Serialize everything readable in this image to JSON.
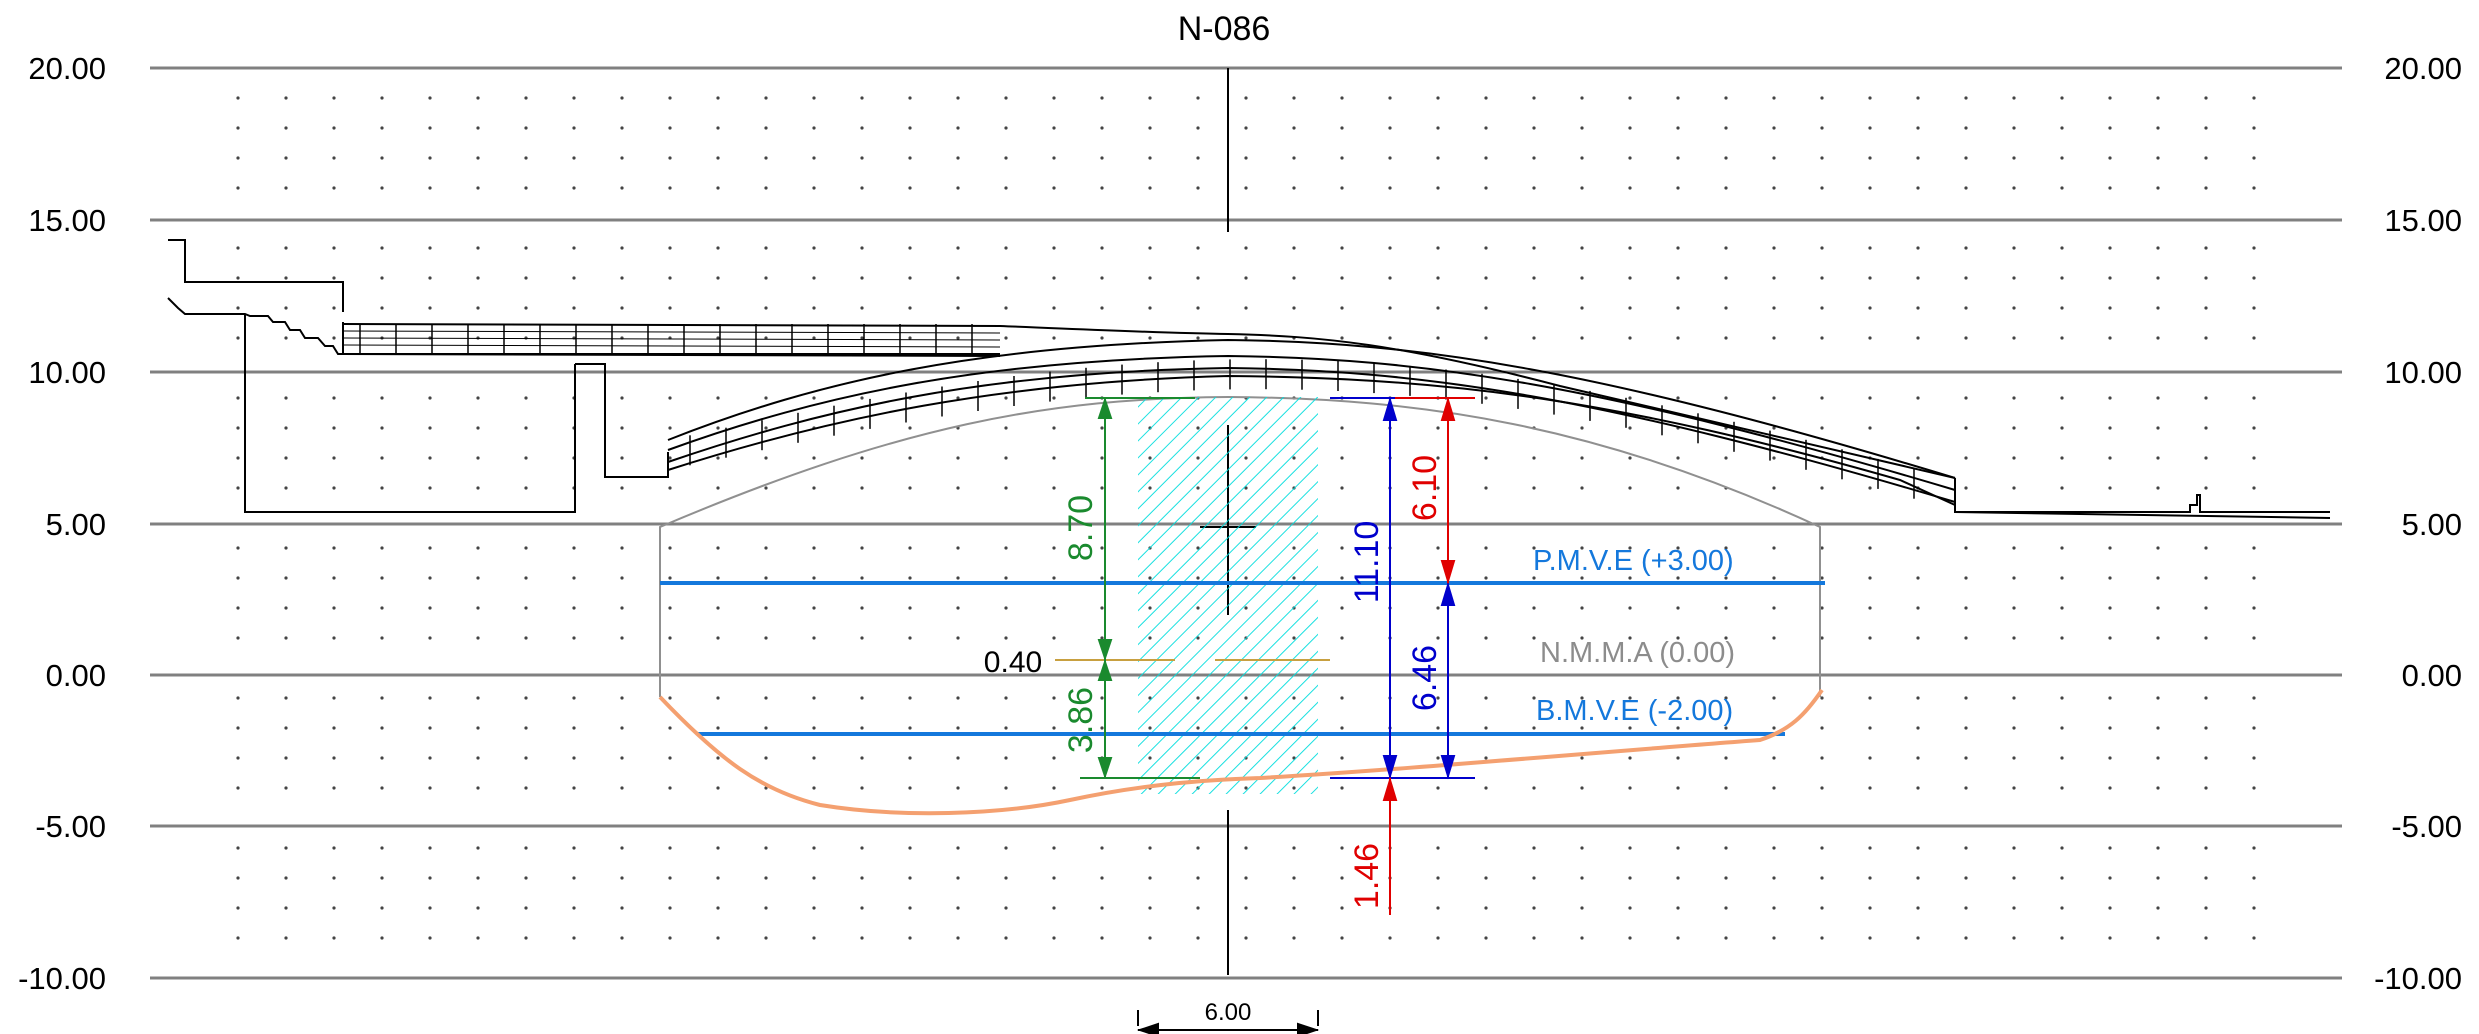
{
  "title": "N-086",
  "elevation_labels": [
    "20.00",
    "15.00",
    "10.00",
    "5.00",
    "0.00",
    "-5.00",
    "-10.00"
  ],
  "levels": {
    "pmve": "P.M.V.E (+3.00)",
    "nmma": "N.M.M.A (0.00)",
    "bmve": "B.M.V.E (-2.00)"
  },
  "dimensions": {
    "green_upper": "8.70",
    "green_lower": "3.86",
    "offset": "0.40",
    "blue_total": "11.10",
    "blue_lower": "6.46",
    "red_upper": "6.10",
    "red_lower": "1.46",
    "channel_width": "6.00"
  },
  "colors": {
    "green": "#1a8a2e",
    "blue": "#0000cc",
    "red": "#e00000",
    "water_level": "#1478dc",
    "nmma": "#8c8c8c",
    "riverbed": "#f4a070",
    "channel_fill": "#00dddd",
    "offset_line": "#c8a040"
  }
}
